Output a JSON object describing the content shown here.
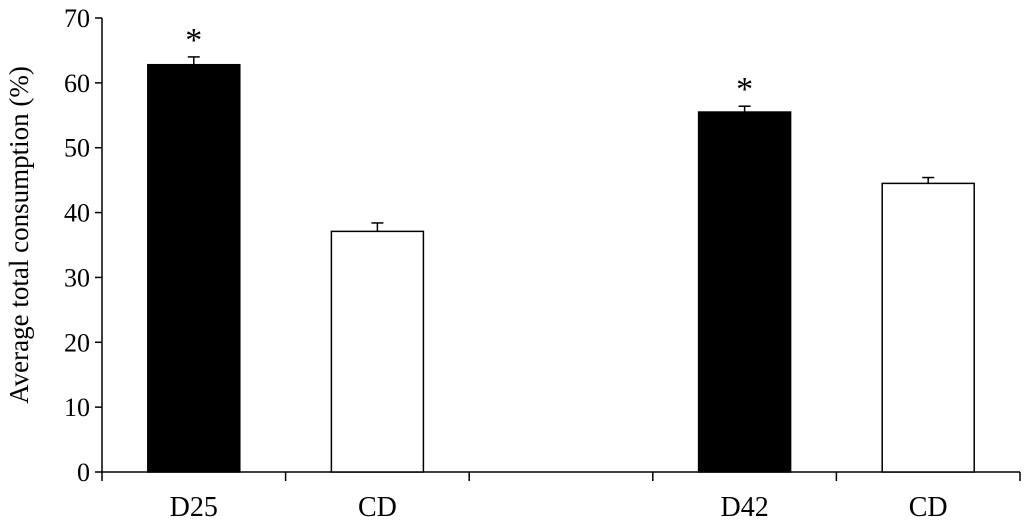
{
  "chart_data": {
    "type": "bar",
    "ylabel": "Average total consumption (%)",
    "xlabel": "",
    "title": "",
    "ylim": [
      0,
      70
    ],
    "y_ticks": [
      0,
      10,
      20,
      30,
      40,
      50,
      60,
      70
    ],
    "grid": false,
    "legend": "none",
    "bars": [
      {
        "category": "D25",
        "value": 62.8,
        "error": 1.2,
        "fill": "#000000",
        "annotation": "*"
      },
      {
        "category": "CD",
        "value": 37.1,
        "error": 1.3,
        "fill": "#ffffff",
        "annotation": ""
      },
      {
        "category": "",
        "value": null,
        "error": null,
        "fill": "none",
        "annotation": ""
      },
      {
        "category": "D42",
        "value": 55.5,
        "error": 0.9,
        "fill": "#000000",
        "annotation": "*"
      },
      {
        "category": "CD",
        "value": 44.5,
        "error": 0.9,
        "fill": "#ffffff",
        "annotation": ""
      }
    ]
  }
}
